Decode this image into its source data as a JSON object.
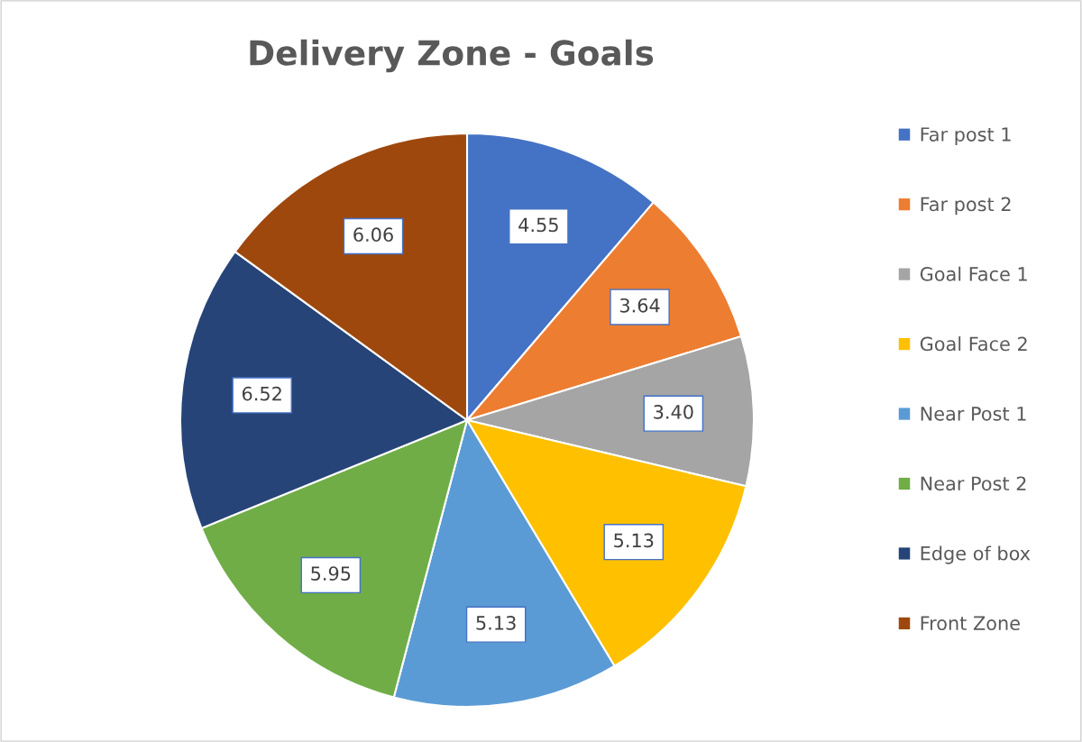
{
  "chart_data": {
    "type": "pie",
    "title": "Delivery Zone - Goals",
    "categories": [
      "Far post 1",
      "Far post 2",
      "Goal Face 1",
      "Goal Face 2",
      "Near Post 1",
      "Near Post 2",
      "Edge of box",
      "Front Zone"
    ],
    "values": [
      4.55,
      3.64,
      3.4,
      5.13,
      5.13,
      5.95,
      6.52,
      6.06
    ],
    "value_labels": [
      "4.55",
      "3.64",
      "3.40",
      "5.13",
      "5.13",
      "5.95",
      "6.52",
      "6.06"
    ],
    "colors": [
      "#4472c4",
      "#ed7d31",
      "#a5a5a5",
      "#ffc000",
      "#5b9bd5",
      "#70ad47",
      "#264478",
      "#9e480e"
    ],
    "legend": "right"
  }
}
